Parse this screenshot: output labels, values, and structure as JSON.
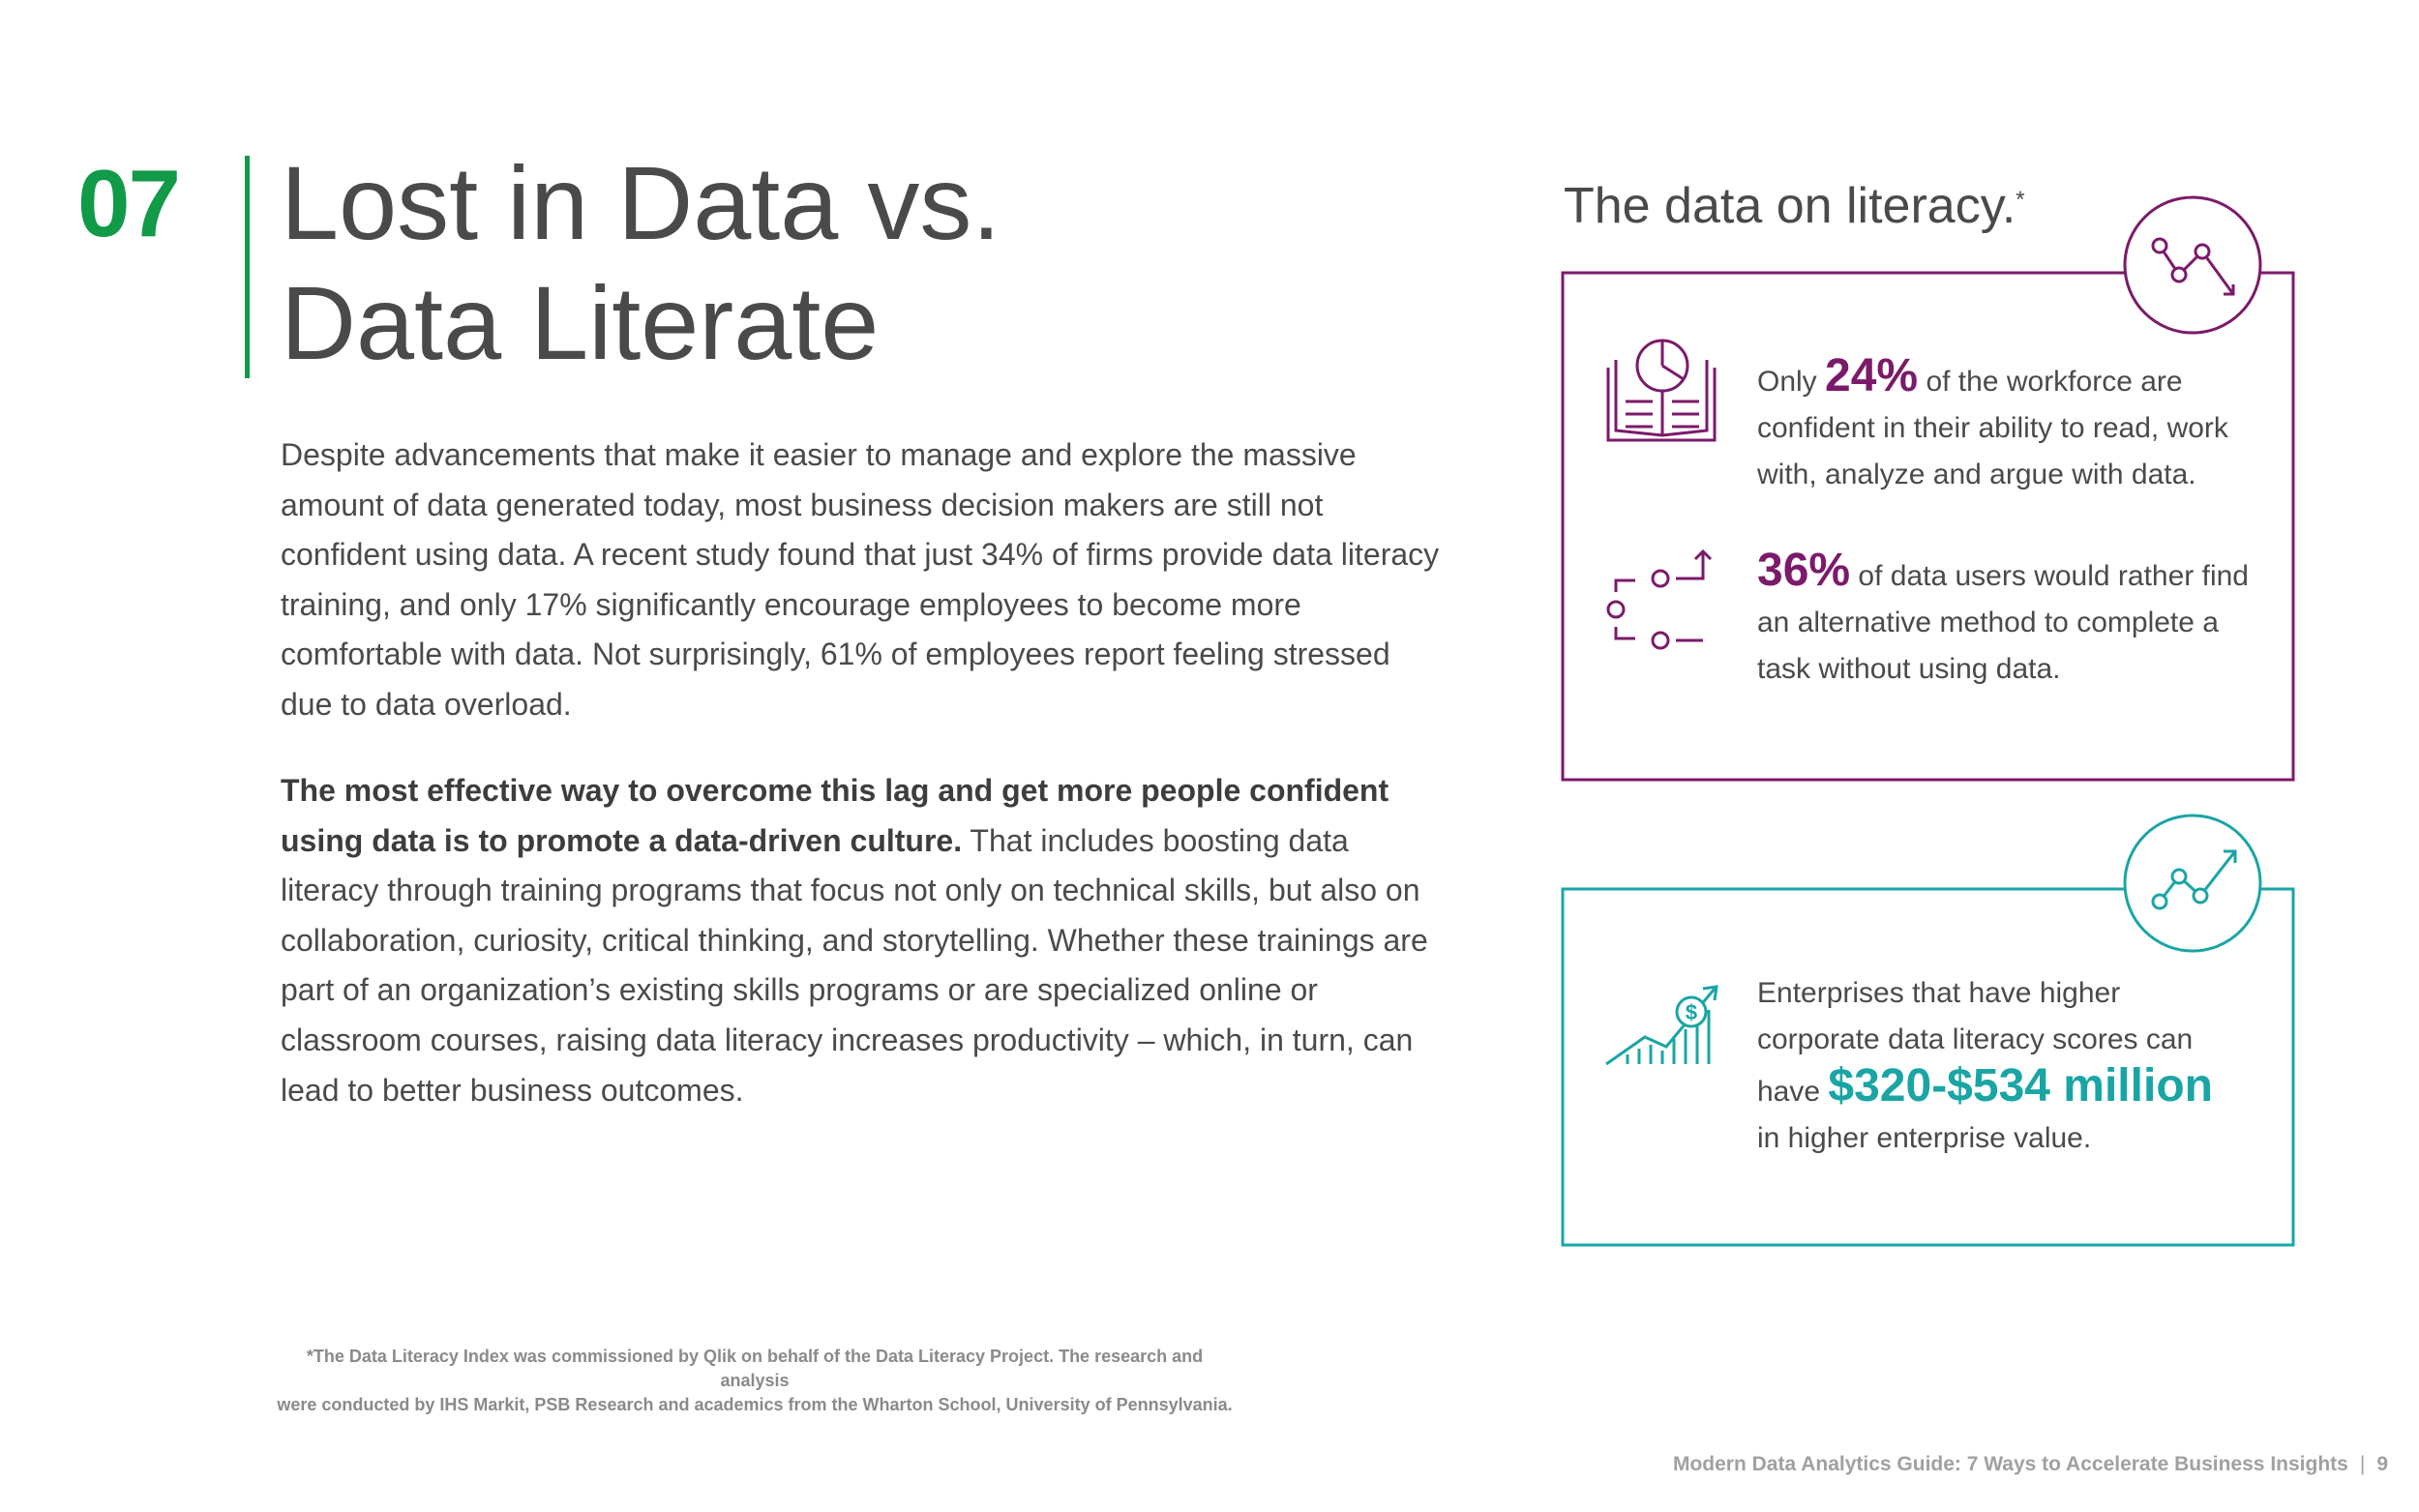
{
  "section_number": "07",
  "title": [
    "Lost in Data vs.",
    "Data Literate"
  ],
  "body": {
    "paragraph_1": "Despite advancements that make it easier to manage and explore the massive amount of data generated today, most business decision makers are still not confident using data. A recent study found that just 34% of firms provide data literacy training, and only 17% significantly encourage employees to become more comfortable with data. Not surprisingly, 61% of employees report feeling stressed due to data overload.",
    "paragraph_2_bold": "The most effective way to overcome this lag and get more people confident using data is to promote a data-driven culture.",
    "paragraph_2_rest": "That includes boosting data literacy through training programs that focus not only on technical skills, but also on collaboration, curiosity, critical thinking, and storytelling. Whether these trainings are part of an organization’s existing skills programs or are specialized online or classroom courses, raising data literacy increases productivity – which, in turn, can lead to better business outcomes."
  },
  "sidebar": {
    "heading": "The data on literacy.",
    "heading_mark": "*",
    "stats": [
      {
        "prefix": "Only",
        "highlight": "24%",
        "suffix": "of the workforce are confident in their ability to read, work with, analyze and argue with data."
      },
      {
        "highlight": "36%",
        "suffix": "of data users would rather find an alternative method to complete a task without using data."
      },
      {
        "prefix": "Enterprises that have higher corporate data literacy scores can have",
        "highlight": "$320-$534 million",
        "suffix": "in higher enterprise value."
      }
    ]
  },
  "footnote": [
    "*The Data Literacy Index was commissioned by Qlik on behalf of the Data Literacy Project. The research and analysis",
    "were conducted by IHS Markit, PSB Research and academics from the Wharton School, University of Pennsylvania."
  ],
  "footer": {
    "guide": "Modern Data Analytics Guide: 7 Ways to Accelerate Business Insights",
    "separator": "|",
    "page": "9"
  }
}
